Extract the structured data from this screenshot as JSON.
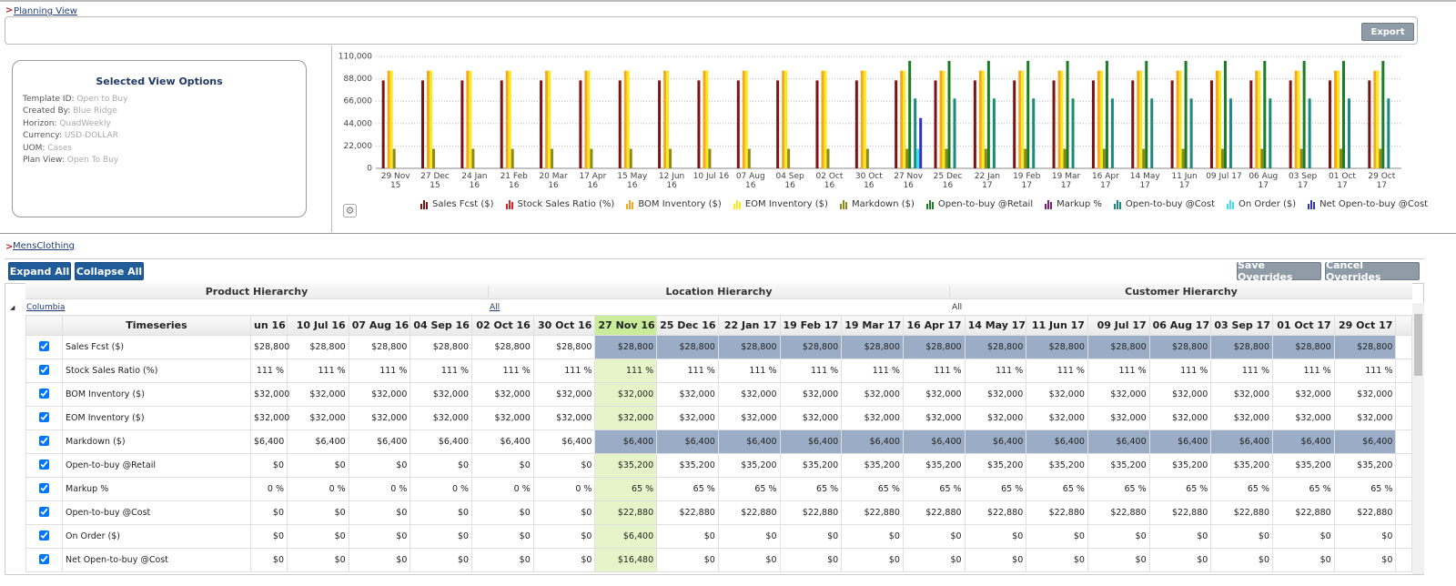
{
  "header": {
    "title": "Planning View",
    "export": "Export"
  },
  "view_options": {
    "title": "Selected View Options",
    "fields": [
      {
        "label": "Template ID:",
        "value": "Open to Buy"
      },
      {
        "label": "Created By:",
        "value": "Blue Ridge"
      },
      {
        "label": "Horizon:",
        "value": "QuadWeekly"
      },
      {
        "label": "Currency:",
        "value": "USD-DOLLAR"
      },
      {
        "label": "UOM:",
        "value": "Cases"
      },
      {
        "label": "Plan View:",
        "value": "Open To Buy"
      }
    ]
  },
  "chart_data": {
    "type": "bar",
    "categories": [
      "29 Nov 15",
      "27 Dec 15",
      "24 Jan 16",
      "21 Feb 16",
      "20 Mar 16",
      "17 Apr 16",
      "15 May 16",
      "12 Jun 16",
      "10 Jul 16",
      "07 Aug 16",
      "04 Sep 16",
      "02 Oct 16",
      "30 Oct 16",
      "27 Nov 16",
      "25 Dec 16",
      "22 Jan 17",
      "19 Feb 17",
      "19 Mar 17",
      "16 Apr 17",
      "14 May 17",
      "11 Jun 17",
      "09 Jul 17",
      "06 Aug 17",
      "03 Sep 17",
      "01 Oct 17",
      "29 Oct 17"
    ],
    "series": [
      {
        "name": "Sales Fcst ($)",
        "color": "#7a1414",
        "values": [
          86400,
          86400,
          86400,
          86400,
          86400,
          86400,
          86400,
          86400,
          86400,
          86400,
          86400,
          86400,
          86400,
          86400,
          86400,
          86400,
          86400,
          86400,
          86400,
          86400,
          86400,
          86400,
          86400,
          86400,
          86400,
          86400
        ]
      },
      {
        "name": "Stock Sales Ratio (%)",
        "color": "#e02424",
        "values": [
          111,
          111,
          111,
          111,
          111,
          111,
          111,
          111,
          111,
          111,
          111,
          111,
          111,
          111,
          111,
          111,
          111,
          111,
          111,
          111,
          111,
          111,
          111,
          111,
          111,
          111
        ]
      },
      {
        "name": "BOM Inventory ($)",
        "color": "#f7a823",
        "values": [
          96000,
          96000,
          96000,
          96000,
          96000,
          96000,
          96000,
          96000,
          96000,
          96000,
          96000,
          96000,
          96000,
          96000,
          96000,
          96000,
          96000,
          96000,
          96000,
          96000,
          96000,
          96000,
          96000,
          96000,
          96000,
          96000
        ]
      },
      {
        "name": "EOM Inventory ($)",
        "color": "#f8ea1c",
        "values": [
          96000,
          96000,
          96000,
          96000,
          96000,
          96000,
          96000,
          96000,
          96000,
          96000,
          96000,
          96000,
          96000,
          96000,
          96000,
          96000,
          96000,
          96000,
          96000,
          96000,
          96000,
          96000,
          96000,
          96000,
          96000,
          96000
        ]
      },
      {
        "name": "Markdown ($)",
        "color": "#8c8a1c",
        "values": [
          19200,
          19200,
          19200,
          19200,
          19200,
          19200,
          19200,
          19200,
          19200,
          19200,
          19200,
          19200,
          19200,
          19200,
          19200,
          19200,
          19200,
          19200,
          19200,
          19200,
          19200,
          19200,
          19200,
          19200,
          19200,
          19200
        ]
      },
      {
        "name": "Open-to-buy @Retail",
        "color": "#1a7d24",
        "values": [
          0,
          0,
          0,
          0,
          0,
          0,
          0,
          0,
          0,
          0,
          0,
          0,
          0,
          105600,
          105600,
          105600,
          105600,
          105600,
          105600,
          105600,
          105600,
          105600,
          105600,
          105600,
          105600,
          105600
        ]
      },
      {
        "name": "Markup %",
        "color": "#7b1d80",
        "values": [
          0,
          0,
          0,
          0,
          0,
          0,
          0,
          0,
          0,
          0,
          0,
          0,
          0,
          65,
          65,
          65,
          65,
          65,
          65,
          65,
          65,
          65,
          65,
          65,
          65,
          65
        ]
      },
      {
        "name": "Open-to-buy @Cost",
        "color": "#1b8a7c",
        "values": [
          0,
          0,
          0,
          0,
          0,
          0,
          0,
          0,
          0,
          0,
          0,
          0,
          0,
          68640,
          68640,
          68640,
          68640,
          68640,
          68640,
          68640,
          68640,
          68640,
          68640,
          68640,
          68640,
          68640
        ]
      },
      {
        "name": "On Order ($)",
        "color": "#3fe0ef",
        "values": [
          0,
          0,
          0,
          0,
          0,
          0,
          0,
          0,
          0,
          0,
          0,
          0,
          0,
          19200,
          0,
          0,
          0,
          0,
          0,
          0,
          0,
          0,
          0,
          0,
          0,
          0
        ]
      },
      {
        "name": "Net Open-to-buy @Cost",
        "color": "#2f32c4",
        "values": [
          0,
          0,
          0,
          0,
          0,
          0,
          0,
          0,
          0,
          0,
          0,
          0,
          0,
          49440,
          0,
          0,
          0,
          0,
          0,
          0,
          0,
          0,
          0,
          0,
          0,
          0
        ]
      }
    ],
    "ylim": [
      0,
      110000
    ],
    "yticks": [
      0,
      {
        "value": 22000,
        "label": "22,000"
      },
      {
        "value": 44000,
        "label": "44,000"
      },
      {
        "value": 66000,
        "label": "66,000"
      },
      {
        "value": 88000,
        "label": "88,000"
      },
      {
        "value": 110000,
        "label": "110,000"
      }
    ],
    "grid": true
  },
  "section": {
    "title": "MensClothing",
    "buttons": [
      "Expand All",
      "Collapse All",
      "Save Overrides",
      "Cancel Overrides"
    ]
  },
  "hierarchy": {
    "headers": [
      "Product Hierarchy",
      "Location Hierarchy",
      "Customer Hierarchy"
    ],
    "values": [
      "Columbia",
      "All",
      "All"
    ]
  },
  "table": {
    "header": "Timeseries",
    "columns": [
      "un 16",
      "10 Jul 16",
      "07 Aug 16",
      "04 Sep 16",
      "02 Oct 16",
      "30 Oct 16",
      "27 Nov 16",
      "25 Dec 16",
      "22 Jan 17",
      "19 Feb 17",
      "19 Mar 17",
      "16 Apr 17",
      "14 May 17",
      "11 Jun 17",
      "09 Jul 17",
      "06 Aug 17",
      "03 Sep 17",
      "01 Oct 17",
      "29 Oct 17"
    ],
    "rows": [
      {
        "name": "Sales Fcst ($)",
        "values": [
          "$28,800",
          "$28,800",
          "$28,800",
          "$28,800",
          "$28,800",
          "$28,800",
          "$28,800",
          "$28,800",
          "$28,800",
          "$28,800",
          "$28,800",
          "$28,800",
          "$28,800",
          "$28,800",
          "$28,800",
          "$28,800",
          "$28,800",
          "$28,800",
          "$28,800"
        ]
      },
      {
        "name": "Stock Sales Ratio (%)",
        "values": [
          "111 %",
          "111 %",
          "111 %",
          "111 %",
          "111 %",
          "111 %",
          "111 %",
          "111 %",
          "111 %",
          "111 %",
          "111 %",
          "111 %",
          "111 %",
          "111 %",
          "111 %",
          "111 %",
          "111 %",
          "111 %",
          "111 %"
        ]
      },
      {
        "name": "BOM Inventory ($)",
        "values": [
          "$32,000",
          "$32,000",
          "$32,000",
          "$32,000",
          "$32,000",
          "$32,000",
          "$32,000",
          "$32,000",
          "$32,000",
          "$32,000",
          "$32,000",
          "$32,000",
          "$32,000",
          "$32,000",
          "$32,000",
          "$32,000",
          "$32,000",
          "$32,000",
          "$32,000"
        ]
      },
      {
        "name": "EOM Inventory ($)",
        "values": [
          "$32,000",
          "$32,000",
          "$32,000",
          "$32,000",
          "$32,000",
          "$32,000",
          "$32,000",
          "$32,000",
          "$32,000",
          "$32,000",
          "$32,000",
          "$32,000",
          "$32,000",
          "$32,000",
          "$32,000",
          "$32,000",
          "$32,000",
          "$32,000",
          "$32,000"
        ]
      },
      {
        "name": "Markdown ($)",
        "values": [
          "$6,400",
          "$6,400",
          "$6,400",
          "$6,400",
          "$6,400",
          "$6,400",
          "$6,400",
          "$6,400",
          "$6,400",
          "$6,400",
          "$6,400",
          "$6,400",
          "$6,400",
          "$6,400",
          "$6,400",
          "$6,400",
          "$6,400",
          "$6,400",
          "$6,400"
        ]
      },
      {
        "name": "Open-to-buy @Retail",
        "values": [
          "$0",
          "$0",
          "$0",
          "$0",
          "$0",
          "$0",
          "$35,200",
          "$35,200",
          "$35,200",
          "$35,200",
          "$35,200",
          "$35,200",
          "$35,200",
          "$35,200",
          "$35,200",
          "$35,200",
          "$35,200",
          "$35,200",
          "$35,200"
        ]
      },
      {
        "name": "Markup %",
        "values": [
          "0 %",
          "0 %",
          "0 %",
          "0 %",
          "0 %",
          "0 %",
          "65 %",
          "65 %",
          "65 %",
          "65 %",
          "65 %",
          "65 %",
          "65 %",
          "65 %",
          "65 %",
          "65 %",
          "65 %",
          "65 %",
          "65 %"
        ]
      },
      {
        "name": "Open-to-buy @Cost",
        "values": [
          "$0",
          "$0",
          "$0",
          "$0",
          "$0",
          "$0",
          "$22,880",
          "$22,880",
          "$22,880",
          "$22,880",
          "$22,880",
          "$22,880",
          "$22,880",
          "$22,880",
          "$22,880",
          "$22,880",
          "$22,880",
          "$22,880",
          "$22,880"
        ]
      },
      {
        "name": "On Order ($)",
        "values": [
          "$0",
          "$0",
          "$0",
          "$0",
          "$0",
          "$0",
          "$6,400",
          "$0",
          "$0",
          "$0",
          "$0",
          "$0",
          "$0",
          "$0",
          "$0",
          "$0",
          "$0",
          "$0",
          "$0"
        ]
      },
      {
        "name": "Net Open-to-buy @Cost",
        "values": [
          "$0",
          "$0",
          "$0",
          "$0",
          "$0",
          "$0",
          "$16,480",
          "$0",
          "$0",
          "$0",
          "$0",
          "$0",
          "$0",
          "$0",
          "$0",
          "$0",
          "$0",
          "$0",
          "$0"
        ]
      }
    ]
  }
}
